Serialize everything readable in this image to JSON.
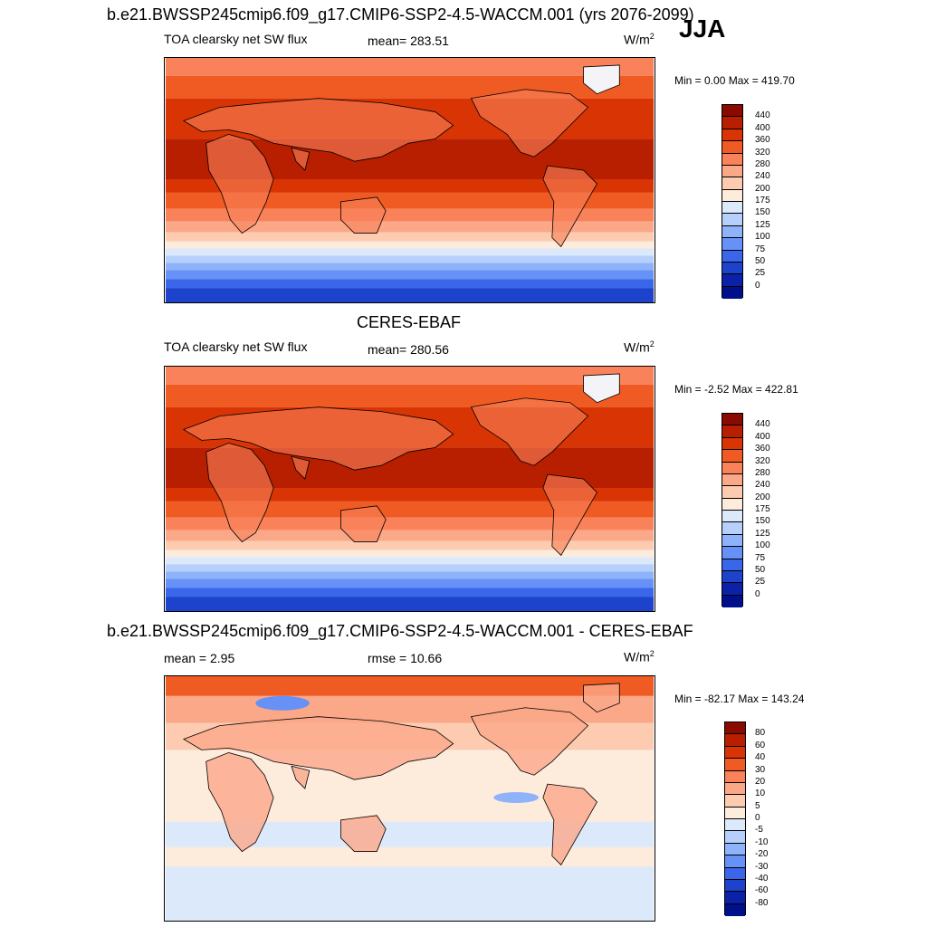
{
  "header": {
    "title_top": "b.e21.BWSSP245cmip6.f09_g17.CMIP6-SSP2-4.5-WACCM.001 (yrs 2076-2099)",
    "season": "JJA"
  },
  "panels": [
    {
      "variable": "TOA clearsky net SW flux",
      "stat": "mean= 283.51",
      "units_base": "W/m",
      "units_exp": "2",
      "minmax": "Min =   0.00 Max = 419.70",
      "colorbar_labels": [
        "440",
        "400",
        "360",
        "320",
        "280",
        "240",
        "200",
        "175",
        "150",
        "125",
        "100",
        "75",
        "50",
        "25",
        "0"
      ],
      "colors": [
        "#8b0a00",
        "#b81e00",
        "#d93404",
        "#f05a23",
        "#f9825a",
        "#fba889",
        "#fccbb0",
        "#fdebdc",
        "#dbe9fb",
        "#b6d0fb",
        "#8fb3fa",
        "#6691f7",
        "#3a66ea",
        "#1d42cc",
        "#0b22a8",
        "#000f8a"
      ]
    },
    {
      "title": "CERES-EBAF",
      "variable": "TOA clearsky net SW flux",
      "stat": "mean= 280.56",
      "units_base": "W/m",
      "units_exp": "2",
      "minmax": "Min =  -2.52 Max = 422.81",
      "colorbar_labels": [
        "440",
        "400",
        "360",
        "320",
        "280",
        "240",
        "200",
        "175",
        "150",
        "125",
        "100",
        "75",
        "50",
        "25",
        "0"
      ],
      "colors": [
        "#8b0a00",
        "#b81e00",
        "#d93404",
        "#f05a23",
        "#f9825a",
        "#fba889",
        "#fccbb0",
        "#fdebdc",
        "#dbe9fb",
        "#b6d0fb",
        "#8fb3fa",
        "#6691f7",
        "#3a66ea",
        "#1d42cc",
        "#0b22a8",
        "#000f8a"
      ]
    },
    {
      "title": "b.e21.BWSSP245cmip6.f09_g17.CMIP6-SSP2-4.5-WACCM.001 - CERES-EBAF",
      "stat_mean": "mean =   2.95",
      "stat_rmse": "rmse =  10.66",
      "units_base": "W/m",
      "units_exp": "2",
      "minmax": "Min = -82.17 Max = 143.24",
      "colorbar_labels": [
        "80",
        "60",
        "40",
        "30",
        "20",
        "10",
        "5",
        "0",
        "-5",
        "-10",
        "-20",
        "-30",
        "-40",
        "-60",
        "-80"
      ],
      "colors": [
        "#8b0a00",
        "#b81e00",
        "#d93404",
        "#f05a23",
        "#f9825a",
        "#fba889",
        "#fccbb0",
        "#fdebdc",
        "#dbe9fb",
        "#b6d0fb",
        "#8fb3fa",
        "#6691f7",
        "#3a66ea",
        "#1d42cc",
        "#0b22a8",
        "#000f8a"
      ]
    }
  ]
}
